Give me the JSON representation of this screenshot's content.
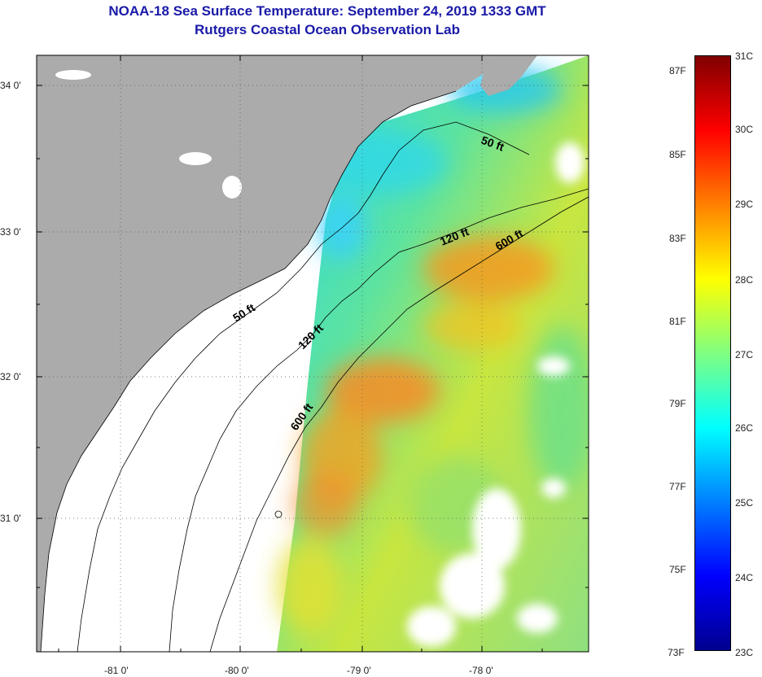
{
  "title": {
    "line1": "NOAA-18 Sea Surface Temperature:  September 24, 2019 1333 GMT",
    "line2": "Rutgers Coastal Ocean Observation Lab"
  },
  "map": {
    "lat_labels": [
      "34 0'",
      "33 0'",
      "32 0'",
      "31 0'"
    ],
    "lon_labels": [
      "-81 0'",
      "-80 0'",
      "-79 0'",
      "-78 0'"
    ],
    "contours": {
      "c50a": "50 ft",
      "c50b": "50 ft",
      "c120a": "120 ft",
      "c120b": "120 ft",
      "c600a": "600 ft",
      "c600b": "600 ft"
    },
    "colors": {
      "land": "#ababab",
      "no_data": "#ffffff",
      "contour": "#000000"
    }
  },
  "colorbar": {
    "fahrenheit": [
      "87F",
      "85F",
      "83F",
      "81F",
      "79F",
      "77F",
      "75F",
      "73F"
    ],
    "celsius": [
      "31C",
      "30C",
      "29C",
      "28C",
      "27C",
      "26C",
      "25C",
      "24C",
      "23C"
    ],
    "range_c": [
      23,
      31
    ],
    "stops": [
      "#00008f",
      "#0000ff",
      "#0080ff",
      "#00ffff",
      "#80ff80",
      "#ffff00",
      "#ff8000",
      "#ff0000",
      "#800000"
    ]
  }
}
